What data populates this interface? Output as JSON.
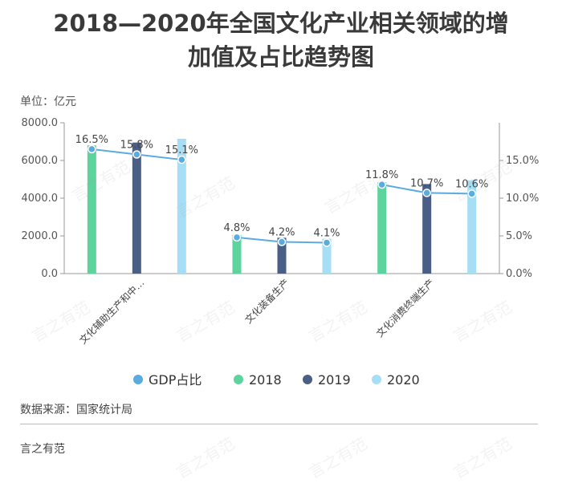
{
  "title": {
    "line1": "2018—2020年全国文化产业相关领域的增",
    "line2": "加值及占比趋势图"
  },
  "unit_label": "单位：亿元",
  "source": "数据来源：国家统计局",
  "brand": "言之有范",
  "watermark": "言之有范",
  "chart_data": {
    "type": "bar",
    "categories": [
      "文化辅助生产和中…",
      "文化装备生产",
      "文化消费终端生产"
    ],
    "series": [
      {
        "name": "2018",
        "values": [
          6800,
          2050,
          4850
        ],
        "color": "#5dd39e"
      },
      {
        "name": "2019",
        "values": [
          6950,
          1900,
          4750
        ],
        "color": "#4a5f86"
      },
      {
        "name": "2020",
        "values": [
          7150,
          1850,
          4950
        ],
        "color": "#a6def5"
      }
    ],
    "line_series": {
      "name": "GDP占比",
      "color": "#5aace0",
      "values": [
        16.5,
        15.8,
        15.1,
        4.8,
        4.2,
        4.1,
        11.8,
        10.7,
        10.6
      ],
      "labels": [
        "16.5%",
        "15.8%",
        "15.1%",
        "4.8%",
        "4.2%",
        "4.1%",
        "11.8%",
        "10.7%",
        "10.6%"
      ]
    },
    "y_left": {
      "ticks": [
        0,
        2000,
        4000,
        6000,
        8000
      ],
      "tick_labels": [
        "0.0",
        "2000.0",
        "4000.0",
        "6000.0",
        "8000.0"
      ],
      "range": [
        0,
        8000
      ]
    },
    "y_right": {
      "ticks": [
        0,
        5,
        10,
        15
      ],
      "tick_labels": [
        "0.0%",
        "5.0%",
        "10.0%",
        "15.0%"
      ],
      "range": [
        0,
        20
      ]
    },
    "legend": [
      "GDP占比",
      "2018",
      "2019",
      "2020"
    ],
    "legend_position": "bottom"
  }
}
